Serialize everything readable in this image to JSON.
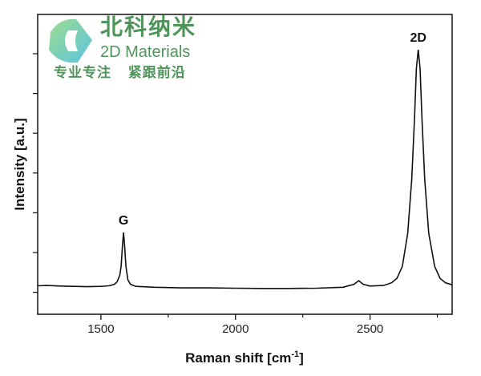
{
  "chart_data": {
    "type": "line",
    "title": "",
    "xlabel": "Raman shift [cm",
    "xlabel_sup": "-1",
    "xlabel_end": "]",
    "ylabel": "Intensity [a.u.]",
    "xlim": [
      1265,
      2805
    ],
    "ylim": [
      0,
      1
    ],
    "xticks": [
      1500,
      2000,
      2500
    ],
    "xtick_labels": [
      "1500",
      "2000",
      "2500"
    ],
    "x_minor_ticks": [
      1750,
      2250,
      2750
    ],
    "grid": false,
    "line_color": "#111111",
    "annotations": [
      {
        "text": "G",
        "x": 1584,
        "y": 0.273
      },
      {
        "text": "2D",
        "x": 2679,
        "y": 0.882
      }
    ],
    "series": [
      {
        "x": [
          1265,
          1300,
          1350,
          1400,
          1450,
          1500,
          1530,
          1550,
          1560,
          1570,
          1575,
          1580,
          1584,
          1588,
          1593,
          1600,
          1610,
          1630,
          1700,
          1800,
          1900,
          2000,
          2100,
          2200,
          2300,
          2400,
          2440,
          2458,
          2475,
          2500,
          2550,
          2580,
          2600,
          2620,
          2640,
          2655,
          2665,
          2672,
          2679,
          2686,
          2693,
          2703,
          2718,
          2740,
          2760,
          2780,
          2805
        ],
        "y": [
          0.095,
          0.096,
          0.094,
          0.093,
          0.092,
          0.093,
          0.095,
          0.1,
          0.108,
          0.13,
          0.16,
          0.23,
          0.273,
          0.23,
          0.16,
          0.115,
          0.1,
          0.093,
          0.09,
          0.088,
          0.088,
          0.087,
          0.086,
          0.086,
          0.087,
          0.09,
          0.1,
          0.112,
          0.1,
          0.094,
          0.096,
          0.105,
          0.12,
          0.16,
          0.27,
          0.45,
          0.65,
          0.82,
          0.882,
          0.82,
          0.65,
          0.45,
          0.27,
          0.16,
          0.12,
          0.105,
          0.098
        ]
      }
    ]
  },
  "watermark": {
    "brand_cn": "北科纳米",
    "brand_en": "2D Materials",
    "slogan": "专业专注   紧跟前沿"
  }
}
